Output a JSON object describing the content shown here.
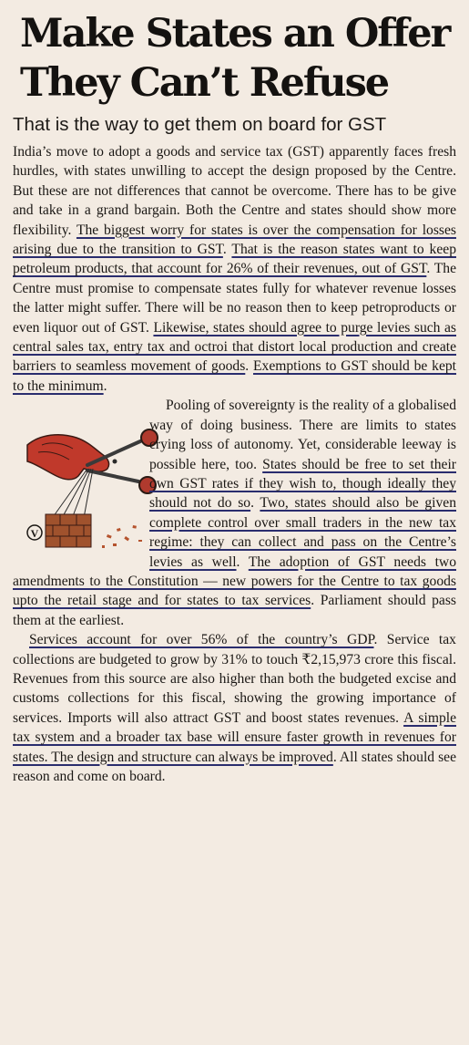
{
  "headline": {
    "line1": "Make States an Offer",
    "line2": "They Can’t Refuse"
  },
  "subhead": "That is the way to get them on board for GST",
  "paragraph1": {
    "s1": "India’s move to adopt a goods and service tax (GST) apparently faces fresh hurdles, with states unwilling to accept the design proposed by the Centre. But these are not differences that cannot be overcome. There has to be give and take in a grand bargain. Both the Centre and states should show more flexibility. ",
    "u1": "The biggest worry for states is over the compensation for losses arising due to the transition to GST",
    "s2": ". ",
    "u2": "That is the reason states want to keep petroleum products, that account for 26% of their revenues, out of GST",
    "s3": ". The Centre must promise to compensate states fully for whatever revenue losses the latter might suffer. There will be no reason then to keep petroproducts or even liquor out of GST. ",
    "u3": "Likewise, states should agree to purge levies such as central sales tax, entry tax and octroi that distort local production and create barriers to seamless movement of goods",
    "s4": ". ",
    "u4": "Exemptions to GST should be kept to the minimum",
    "s5": "."
  },
  "paragraph2": {
    "s1": "Pooling of sovereignty is the reality of a globalised way of doing business. There are limits to states crying loss of autonomy. Yet, considerable leeway is possible here, too. ",
    "u1": "States should be free to set their own GST rates if they wish to, though ideally they should not do so",
    "s2": ". ",
    "u2": "Two, states should also be given complete control over small traders in the new tax regime: they can collect and pass on the Centre’s levies as well",
    "s3": ". ",
    "u3": "The adoption of GST needs two amendments to the Constitution — new powers for the Centre to tax goods upto the retail stage and for states to tax services",
    "s4": ". Parliament should pass them at the earliest."
  },
  "paragraph3": {
    "u1": "Services account for over 56% of the country’s GDP",
    "s1": ". Service tax collections are budgeted to grow by 31% to touch ₹2,15,973 crore this fiscal. Revenues from this source are also higher than both the budgeted excise and customs collections for this fiscal, showing the growing importance of services. Imports will also attract GST and boost states revenues. ",
    "u2": "A simple tax system and a broader tax base will ensure faster growth in revenues for states. The design and structure can always be improved",
    "s2": ". All states should see reason and come on board."
  },
  "illustration": {
    "logo_letter": "V"
  },
  "colors": {
    "paper": "#f3ebe2",
    "ink": "#1a1714",
    "underline_pen": "#2a2d6e",
    "hand_red": "#c0392b",
    "brick": "#a0522d"
  }
}
